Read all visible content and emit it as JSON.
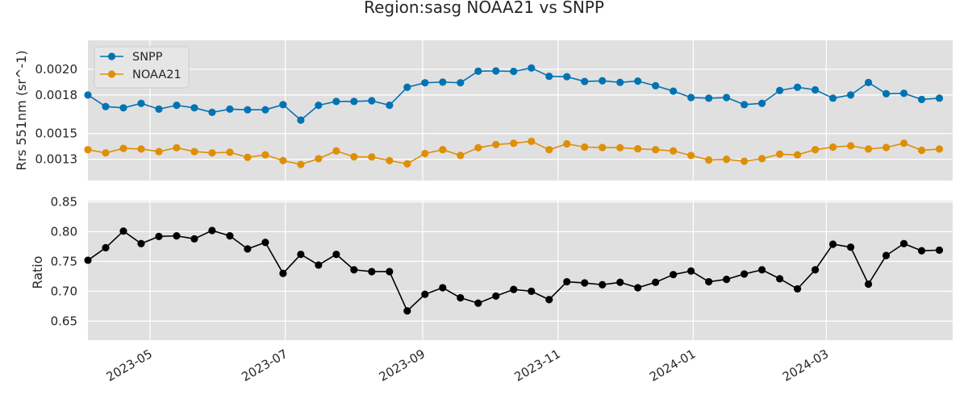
{
  "chart_data": [
    {
      "type": "line",
      "title": "Region:sasg NOAA21 vs SNPP",
      "ylabel": "Rrs 551nm (sr^-1)",
      "xlim": [
        "2023-04-03",
        "2024-04-27"
      ],
      "ylim": [
        0.001135,
        0.002225
      ],
      "yticks": [
        0.0013,
        0.0015,
        0.0018,
        0.002
      ],
      "yticklabels": [
        "0.0013",
        "0.0015",
        "0.0018",
        "0.0020"
      ],
      "grid": true,
      "legend_position": "top-left",
      "x": [
        "2023-04-03",
        "2023-04-11",
        "2023-04-19",
        "2023-04-27",
        "2023-05-05",
        "2023-05-13",
        "2023-05-21",
        "2023-05-29",
        "2023-06-06",
        "2023-06-14",
        "2023-06-22",
        "2023-06-30",
        "2023-07-08",
        "2023-07-16",
        "2023-07-24",
        "2023-08-01",
        "2023-08-09",
        "2023-08-17",
        "2023-08-25",
        "2023-09-02",
        "2023-09-10",
        "2023-09-18",
        "2023-09-26",
        "2023-10-04",
        "2023-10-12",
        "2023-10-20",
        "2023-10-28",
        "2023-11-05",
        "2023-11-13",
        "2023-11-21",
        "2023-11-29",
        "2023-12-07",
        "2023-12-15",
        "2023-12-23",
        "2023-12-31",
        "2024-01-08",
        "2024-01-16",
        "2024-01-24",
        "2024-02-01",
        "2024-02-09",
        "2024-02-17",
        "2024-02-25",
        "2024-03-04",
        "2024-03-12",
        "2024-03-20",
        "2024-03-28",
        "2024-04-05",
        "2024-04-13",
        "2024-04-21"
      ],
      "series": [
        {
          "name": "SNPP",
          "color": "#0173b2",
          "values": [
            0.0018,
            0.00171,
            0.0017,
            0.001735,
            0.00169,
            0.00172,
            0.0017,
            0.001665,
            0.00169,
            0.001685,
            0.001685,
            0.001725,
            0.001605,
            0.00172,
            0.00175,
            0.00175,
            0.001755,
            0.00172,
            0.00186,
            0.001895,
            0.0019,
            0.001895,
            0.001985,
            0.001987,
            0.001983,
            0.00201,
            0.001945,
            0.001942,
            0.001905,
            0.00191,
            0.001898,
            0.001908,
            0.001872,
            0.00183,
            0.00178,
            0.001775,
            0.00178,
            0.001725,
            0.001735,
            0.001835,
            0.00186,
            0.00184,
            0.001775,
            0.0018,
            0.001897,
            0.00181,
            0.001813,
            0.001765,
            0.001775
          ]
        },
        {
          "name": "NOAA21",
          "color": "#de8f05",
          "values": [
            0.001375,
            0.00135,
            0.001385,
            0.00138,
            0.00136,
            0.00139,
            0.00136,
            0.00135,
            0.001355,
            0.001315,
            0.001335,
            0.00129,
            0.00126,
            0.001305,
            0.001365,
            0.00132,
            0.001318,
            0.00129,
            0.001265,
            0.001345,
            0.001375,
            0.00133,
            0.00139,
            0.001415,
            0.001425,
            0.00144,
            0.001375,
            0.00142,
            0.001395,
            0.001392,
            0.00139,
            0.001382,
            0.001375,
            0.001365,
            0.00133,
            0.001295,
            0.0013,
            0.001285,
            0.001305,
            0.00134,
            0.001335,
            0.001375,
            0.001395,
            0.001405,
            0.00138,
            0.001392,
            0.001425,
            0.00137,
            0.00138
          ]
        }
      ]
    },
    {
      "type": "line",
      "ylabel": "Ratio",
      "xlim": [
        "2023-04-03",
        "2024-04-27"
      ],
      "ylim": [
        0.618,
        0.852
      ],
      "yticks": [
        0.65,
        0.7,
        0.75,
        0.8,
        0.85
      ],
      "yticklabels": [
        "0.65",
        "0.70",
        "0.75",
        "0.80",
        "0.85"
      ],
      "xticks": [
        "2023-05-01",
        "2023-07-01",
        "2023-09-01",
        "2023-11-01",
        "2024-01-01",
        "2024-03-01"
      ],
      "xticklabels": [
        "2023-05",
        "2023-07",
        "2023-09",
        "2023-11",
        "2024-01",
        "2024-03"
      ],
      "grid": true,
      "x": [
        "2023-04-03",
        "2023-04-11",
        "2023-04-19",
        "2023-04-27",
        "2023-05-05",
        "2023-05-13",
        "2023-05-21",
        "2023-05-29",
        "2023-06-06",
        "2023-06-14",
        "2023-06-22",
        "2023-06-30",
        "2023-07-08",
        "2023-07-16",
        "2023-07-24",
        "2023-08-01",
        "2023-08-09",
        "2023-08-17",
        "2023-08-25",
        "2023-09-02",
        "2023-09-10",
        "2023-09-18",
        "2023-09-26",
        "2023-10-04",
        "2023-10-12",
        "2023-10-20",
        "2023-10-28",
        "2023-11-05",
        "2023-11-13",
        "2023-11-21",
        "2023-11-29",
        "2023-12-07",
        "2023-12-15",
        "2023-12-23",
        "2023-12-31",
        "2024-01-08",
        "2024-01-16",
        "2024-01-24",
        "2024-02-01",
        "2024-02-09",
        "2024-02-17",
        "2024-02-25",
        "2024-03-04",
        "2024-03-12",
        "2024-03-20",
        "2024-03-28",
        "2024-04-05",
        "2024-04-13",
        "2024-04-21"
      ],
      "series": [
        {
          "color": "#000000",
          "values": [
            0.752,
            0.773,
            0.801,
            0.78,
            0.792,
            0.793,
            0.788,
            0.802,
            0.793,
            0.771,
            0.782,
            0.73,
            0.762,
            0.744,
            0.762,
            0.736,
            0.733,
            0.733,
            0.667,
            0.695,
            0.706,
            0.689,
            0.68,
            0.692,
            0.703,
            0.7,
            0.686,
            0.716,
            0.714,
            0.711,
            0.715,
            0.706,
            0.715,
            0.728,
            0.734,
            0.716,
            0.72,
            0.729,
            0.736,
            0.721,
            0.704,
            0.736,
            0.779,
            0.774,
            0.712,
            0.76,
            0.78,
            0.768,
            0.769
          ]
        }
      ]
    }
  ]
}
